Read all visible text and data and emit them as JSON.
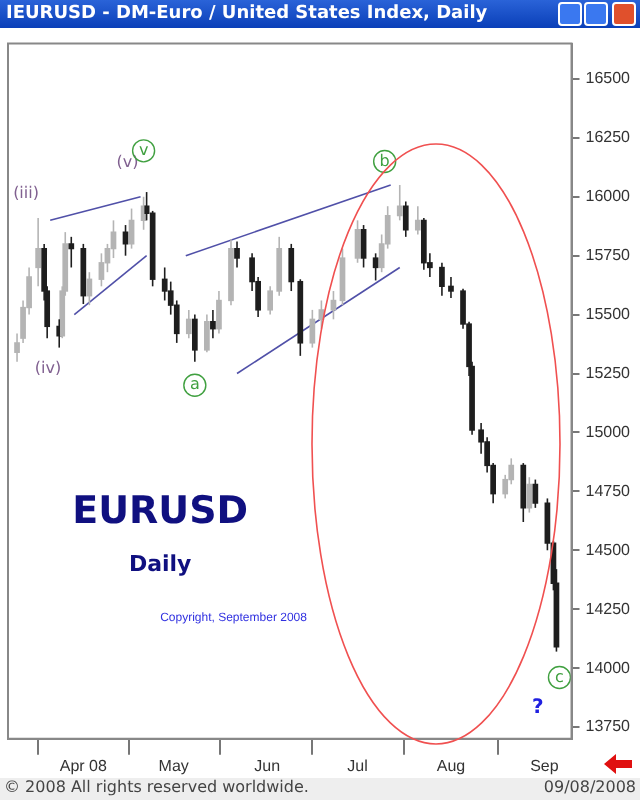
{
  "chart_data": {
    "type": "candlestick",
    "title": "IEURUSD - DM-Euro / United States Index, Daily",
    "x": [
      "2008-03-10",
      "2008-03-12",
      "2008-03-14",
      "2008-03-17",
      "2008-03-19",
      "2008-03-20",
      "2008-03-24",
      "2008-03-25",
      "2008-03-26",
      "2008-03-28",
      "2008-04-01",
      "2008-04-03",
      "2008-04-07",
      "2008-04-09",
      "2008-04-11",
      "2008-04-15",
      "2008-04-17",
      "2008-04-21",
      "2008-04-22",
      "2008-04-24",
      "2008-04-28",
      "2008-04-30",
      "2008-05-02",
      "2008-05-06",
      "2008-05-08",
      "2008-05-12",
      "2008-05-14",
      "2008-05-16",
      "2008-05-20",
      "2008-05-22",
      "2008-05-27",
      "2008-05-29",
      "2008-06-02",
      "2008-06-05",
      "2008-06-09",
      "2008-06-12",
      "2008-06-16",
      "2008-06-19",
      "2008-06-23",
      "2008-06-26",
      "2008-07-01",
      "2008-07-03",
      "2008-07-07",
      "2008-07-09",
      "2008-07-11",
      "2008-07-15",
      "2008-07-17",
      "2008-07-21",
      "2008-07-23",
      "2008-07-25",
      "2008-07-29",
      "2008-08-01",
      "2008-08-05",
      "2008-08-07",
      "2008-08-08",
      "2008-08-11",
      "2008-08-13",
      "2008-08-15",
      "2008-08-19",
      "2008-08-21",
      "2008-08-25",
      "2008-08-27",
      "2008-08-29",
      "2008-09-02",
      "2008-09-04",
      "2008-09-05"
    ],
    "ohlc": [
      [
        15340,
        15420,
        15300,
        15380
      ],
      [
        15400,
        15560,
        15380,
        15530
      ],
      [
        15530,
        15700,
        15500,
        15660
      ],
      [
        15700,
        15910,
        15620,
        15780
      ],
      [
        15780,
        15800,
        15560,
        15600
      ],
      [
        15600,
        15620,
        15400,
        15450
      ],
      [
        15450,
        15480,
        15360,
        15410
      ],
      [
        15410,
        15620,
        15400,
        15600
      ],
      [
        15600,
        15850,
        15580,
        15800
      ],
      [
        15800,
        15830,
        15700,
        15780
      ],
      [
        15780,
        15800,
        15545,
        15580
      ],
      [
        15580,
        15680,
        15540,
        15650
      ],
      [
        15650,
        15760,
        15620,
        15720
      ],
      [
        15720,
        15800,
        15680,
        15780
      ],
      [
        15780,
        15900,
        15740,
        15850
      ],
      [
        15850,
        15880,
        15750,
        15800
      ],
      [
        15800,
        15950,
        15780,
        15900
      ],
      [
        15900,
        16000,
        15860,
        15960
      ],
      [
        15960,
        16020,
        15900,
        15930
      ],
      [
        15930,
        15940,
        15620,
        15650
      ],
      [
        15650,
        15700,
        15560,
        15600
      ],
      [
        15600,
        15640,
        15500,
        15540
      ],
      [
        15540,
        15560,
        15380,
        15420
      ],
      [
        15420,
        15520,
        15400,
        15480
      ],
      [
        15480,
        15500,
        15300,
        15350
      ],
      [
        15350,
        15500,
        15340,
        15470
      ],
      [
        15470,
        15520,
        15400,
        15440
      ],
      [
        15440,
        15600,
        15420,
        15560
      ],
      [
        15560,
        15820,
        15540,
        15780
      ],
      [
        15780,
        15810,
        15700,
        15740
      ],
      [
        15740,
        15760,
        15600,
        15640
      ],
      [
        15640,
        15660,
        15490,
        15520
      ],
      [
        15520,
        15620,
        15500,
        15600
      ],
      [
        15600,
        15830,
        15580,
        15780
      ],
      [
        15780,
        15800,
        15600,
        15640
      ],
      [
        15640,
        15650,
        15325,
        15380
      ],
      [
        15380,
        15520,
        15360,
        15480
      ],
      [
        15480,
        15560,
        15440,
        15520
      ],
      [
        15520,
        15600,
        15480,
        15560
      ],
      [
        15560,
        15780,
        15540,
        15740
      ],
      [
        15740,
        15900,
        15720,
        15860
      ],
      [
        15860,
        15880,
        15700,
        15740
      ],
      [
        15740,
        15760,
        15645,
        15700
      ],
      [
        15700,
        15840,
        15680,
        15800
      ],
      [
        15800,
        15960,
        15780,
        15920
      ],
      [
        15920,
        16050,
        15900,
        15960
      ],
      [
        15960,
        15980,
        15830,
        15860
      ],
      [
        15860,
        15960,
        15840,
        15900
      ],
      [
        15900,
        15910,
        15690,
        15720
      ],
      [
        15720,
        15760,
        15660,
        15700
      ],
      [
        15700,
        15720,
        15580,
        15620
      ],
      [
        15620,
        15660,
        15570,
        15600
      ],
      [
        15600,
        15610,
        15440,
        15460
      ],
      [
        15460,
        15470,
        15240,
        15280
      ],
      [
        15280,
        15300,
        14990,
        15010
      ],
      [
        15010,
        15040,
        14910,
        14960
      ],
      [
        14960,
        14980,
        14830,
        14860
      ],
      [
        14860,
        14870,
        14700,
        14740
      ],
      [
        14740,
        14820,
        14720,
        14800
      ],
      [
        14800,
        14890,
        14780,
        14860
      ],
      [
        14860,
        14870,
        14620,
        14680
      ],
      [
        14680,
        14810,
        14660,
        14780
      ],
      [
        14780,
        14800,
        14680,
        14700
      ],
      [
        14700,
        14720,
        14500,
        14530
      ],
      [
        14530,
        14540,
        14330,
        14360
      ],
      [
        14360,
        14420,
        14070,
        14090
      ]
    ],
    "colors": [
      "#b4b4b4",
      "#b4b4b4",
      "#b4b4b4",
      "#b4b4b4",
      "#1e1e1e",
      "#1e1e1e",
      "#1e1e1e",
      "#b4b4b4",
      "#b4b4b4",
      "#1e1e1e",
      "#1e1e1e",
      "#b4b4b4",
      "#b4b4b4",
      "#b4b4b4",
      "#b4b4b4",
      "#1e1e1e",
      "#b4b4b4",
      "#b4b4b4",
      "#1e1e1e",
      "#1e1e1e",
      "#1e1e1e",
      "#1e1e1e",
      "#1e1e1e",
      "#b4b4b4",
      "#1e1e1e",
      "#b4b4b4",
      "#1e1e1e",
      "#b4b4b4",
      "#b4b4b4",
      "#1e1e1e",
      "#1e1e1e",
      "#1e1e1e",
      "#b4b4b4",
      "#b4b4b4",
      "#1e1e1e",
      "#1e1e1e",
      "#b4b4b4",
      "#b4b4b4",
      "#b4b4b4",
      "#b4b4b4",
      "#b4b4b4",
      "#1e1e1e",
      "#1e1e1e",
      "#b4b4b4",
      "#b4b4b4",
      "#b4b4b4",
      "#1e1e1e",
      "#b4b4b4",
      "#1e1e1e",
      "#1e1e1e",
      "#1e1e1e",
      "#1e1e1e",
      "#1e1e1e",
      "#1e1e1e",
      "#1e1e1e",
      "#1e1e1e",
      "#1e1e1e",
      "#1e1e1e",
      "#b4b4b4",
      "#b4b4b4",
      "#1e1e1e",
      "#b4b4b4",
      "#1e1e1e",
      "#1e1e1e",
      "#1e1e1e",
      "#1e1e1e"
    ],
    "xlim": [
      "2008-03-07",
      "2008-09-10"
    ],
    "xticks": [
      {
        "value": "2008-04-01",
        "label": "Apr 08"
      },
      {
        "value": "2008-05-01",
        "label": "May"
      },
      {
        "value": "2008-06-01",
        "label": "Jun"
      },
      {
        "value": "2008-07-01",
        "label": "Jul"
      },
      {
        "value": "2008-08-01",
        "label": "Aug"
      },
      {
        "value": "2008-09-01",
        "label": "Sep"
      }
    ],
    "ylim": [
      13700,
      16650
    ],
    "yticks": [
      13750,
      14000,
      14250,
      14500,
      14750,
      15000,
      15250,
      15500,
      15750,
      16000,
      16250,
      16500
    ],
    "grid": false,
    "series": [
      {
        "type": "line",
        "color": "#5050a8",
        "x": [
          "2008-03-21",
          "2008-04-20"
        ],
        "values": [
          15900,
          16000
        ]
      },
      {
        "type": "line",
        "color": "#5050a8",
        "x": [
          "2008-03-29",
          "2008-04-22"
        ],
        "values": [
          15500,
          15750
        ]
      },
      {
        "type": "line",
        "color": "#5050a8",
        "x": [
          "2008-05-05",
          "2008-07-12"
        ],
        "values": [
          15750,
          16050
        ]
      },
      {
        "type": "line",
        "color": "#5050a8",
        "x": [
          "2008-05-22",
          "2008-07-15"
        ],
        "values": [
          15250,
          15700
        ]
      }
    ],
    "annotations": [
      "EURUSD",
      "Daily",
      "Copyright, September 2008",
      "© 2008 All rights reserved worldwide.",
      "09/08/2008",
      "(iii)",
      "(iv)",
      "(v)",
      "?",
      {
        "text": "v",
        "x": "2008-04-21",
        "y": 16195
      },
      {
        "text": "a",
        "x": "2008-05-08",
        "y": 15200
      },
      {
        "text": "b",
        "x": "2008-07-10",
        "y": 16150
      },
      {
        "text": "c",
        "x": "2008-09-06",
        "y": 13960
      }
    ]
  }
}
